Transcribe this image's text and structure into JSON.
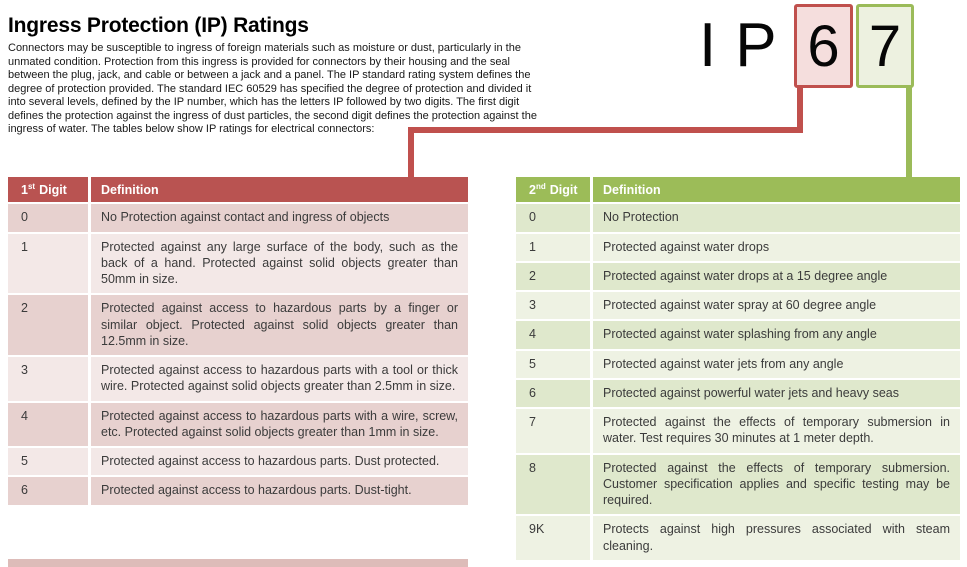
{
  "page": {
    "title": "Ingress Protection (IP) Ratings",
    "intro": "Connectors may be susceptible to ingress of foreign materials such as moisture or dust, particularly in the\nunmated condition. Protection from this ingress is provided for connectors by their housing and the seal\nbetween the plug, jack, and cable or between a jack and a panel. The IP standard rating system defines the\ndegree of protection provided. The standard IEC 60529 has specified the degree of protection and divided it\ninto several levels, defined by the IP number, which has the letters IP followed by two digits. The first digit\ndefines the protection against the ingress of dust particles, the second digit defines the protection against the\ningress of water. The tables below show IP ratings for electrical connectors:"
  },
  "ip_graphic": {
    "letters": "IP",
    "first_digit": "6",
    "second_digit": "7"
  },
  "colors": {
    "accent_red": "#c0504d",
    "accent_green": "#9bbb59",
    "header_red": "#b95351",
    "header_green": "#9cbc58",
    "band_red_dark": "#e7d1cf",
    "band_red_light": "#f3e8e7",
    "band_green_dark": "#dfe8cc",
    "band_green_light": "#eef2e3",
    "box_red_fill": "#f5dedd",
    "box_green_fill": "#edf1e0",
    "band_red_sliver": "#ddbcb9"
  },
  "table1": {
    "header": {
      "digit_num": "1",
      "digit_sup": "st",
      "digit_word": "Digit",
      "definition": "Definition"
    },
    "rows": [
      {
        "digit": "0",
        "definition": "No Protection against contact and ingress of objects"
      },
      {
        "digit": "1",
        "definition": "Protected against any large surface of the body, such as the back of a hand. Protected against solid objects greater than 50mm in size."
      },
      {
        "digit": "2",
        "definition": "Protected against access to hazardous parts by a finger or similar object. Protected against solid objects greater than 12.5mm in size."
      },
      {
        "digit": "3",
        "definition": "Protected against access to hazardous parts with a tool or thick wire. Protected against solid objects greater than 2.5mm in size."
      },
      {
        "digit": "4",
        "definition": "Protected against access to hazardous parts with a wire, screw, etc. Protected against solid objects greater than 1mm in size."
      },
      {
        "digit": "5",
        "definition": "Protected against access to hazardous parts. Dust protected."
      },
      {
        "digit": "6",
        "definition": "Protected against access to hazardous parts. Dust-tight."
      }
    ]
  },
  "table2": {
    "header": {
      "digit_num": "2",
      "digit_sup": "nd",
      "digit_word": "Digit",
      "definition": "Definition"
    },
    "rows": [
      {
        "digit": "0",
        "definition": "No Protection"
      },
      {
        "digit": "1",
        "definition": "Protected against water drops"
      },
      {
        "digit": "2",
        "definition": "Protected against water drops at a 15 degree angle"
      },
      {
        "digit": "3",
        "definition": "Protected against water spray at 60 degree angle"
      },
      {
        "digit": "4",
        "definition": "Protected against water splashing from any angle"
      },
      {
        "digit": "5",
        "definition": "Protected against water jets from any angle"
      },
      {
        "digit": "6",
        "definition": "Protected against powerful water jets and heavy seas"
      },
      {
        "digit": "7",
        "definition": "Protected against the effects of temporary submersion in water. Test requires 30 minutes at 1 meter depth."
      },
      {
        "digit": "8",
        "definition": "Protected against the effects of temporary submersion. Customer specification applies and specific testing may be required."
      },
      {
        "digit": "9K",
        "definition": "Protects against high pressures associated with steam cleaning."
      }
    ]
  }
}
